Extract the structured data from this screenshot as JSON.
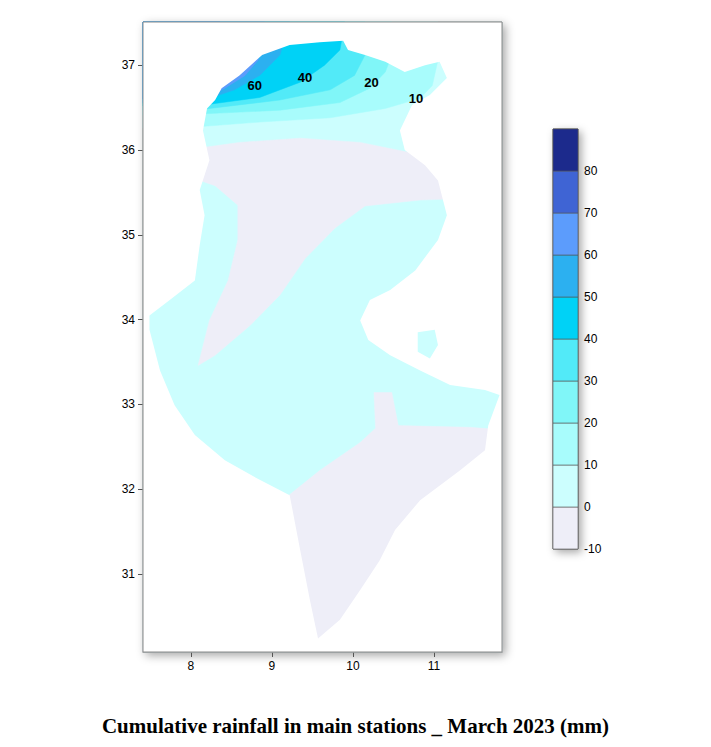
{
  "chart_data": {
    "type": "contour_map",
    "title": "Cumulative rainfall in main stations _ March 2023 (mm)",
    "xlim": [
      7.41,
      11.84
    ],
    "xticks": [
      8,
      9,
      10,
      11
    ],
    "ylim": [
      30.08,
      37.51
    ],
    "yticks": [
      31,
      32,
      33,
      34,
      35,
      36,
      37
    ],
    "grid": false,
    "colorbar": {
      "range": [
        -10,
        90
      ],
      "ticks": [
        -10,
        0,
        10,
        20,
        30,
        40,
        50,
        60,
        70,
        80
      ],
      "colors": [
        "#eeeef8",
        "#ccfefe",
        "#a8fcfc",
        "#80f6f8",
        "#52eaf8",
        "#00d2f6",
        "#2cb0f0",
        "#5c9cfc",
        "#3f64d4",
        "#1c2a8c"
      ]
    },
    "outline": [
      [
        [
          8.2,
          36.49
        ],
        [
          8.3,
          36.59
        ],
        [
          8.38,
          36.73
        ],
        [
          8.6,
          36.88
        ],
        [
          8.88,
          37.12
        ],
        [
          9.22,
          37.24
        ],
        [
          9.59,
          37.27
        ],
        [
          9.88,
          37.29
        ],
        [
          9.94,
          37.18
        ],
        [
          10.15,
          37.12
        ],
        [
          10.4,
          37.04
        ],
        [
          10.64,
          36.92
        ],
        [
          10.89,
          37.0
        ],
        [
          11.07,
          37.04
        ],
        [
          11.16,
          36.85
        ],
        [
          10.95,
          36.65
        ],
        [
          10.73,
          36.53
        ],
        [
          10.58,
          36.23
        ],
        [
          10.64,
          36.0
        ],
        [
          10.89,
          35.82
        ],
        [
          11.05,
          35.64
        ],
        [
          11.16,
          35.23
        ],
        [
          11.05,
          34.94
        ],
        [
          10.77,
          34.58
        ],
        [
          10.46,
          34.35
        ],
        [
          10.21,
          34.23
        ],
        [
          10.09,
          33.99
        ],
        [
          10.19,
          33.76
        ],
        [
          10.46,
          33.58
        ],
        [
          10.83,
          33.4
        ],
        [
          11.2,
          33.23
        ],
        [
          11.63,
          33.17
        ],
        [
          11.81,
          33.11
        ],
        [
          11.67,
          32.75
        ],
        [
          11.63,
          32.46
        ],
        [
          11.32,
          32.22
        ],
        [
          10.83,
          31.87
        ],
        [
          10.52,
          31.52
        ],
        [
          10.33,
          31.16
        ],
        [
          10.09,
          30.81
        ],
        [
          9.84,
          30.46
        ],
        [
          9.57,
          30.24
        ],
        [
          9.47,
          30.69
        ],
        [
          9.35,
          31.28
        ],
        [
          9.22,
          31.93
        ],
        [
          8.85,
          32.11
        ],
        [
          8.42,
          32.34
        ],
        [
          8.05,
          32.64
        ],
        [
          7.8,
          32.99
        ],
        [
          7.62,
          33.4
        ],
        [
          7.49,
          33.88
        ],
        [
          7.49,
          34.05
        ],
        [
          7.74,
          34.23
        ],
        [
          8.05,
          34.46
        ],
        [
          8.11,
          34.88
        ],
        [
          8.17,
          35.23
        ],
        [
          8.11,
          35.53
        ],
        [
          8.23,
          35.88
        ],
        [
          8.15,
          36.23
        ]
      ],
      [
        [
          10.8,
          33.85
        ],
        [
          11.01,
          33.88
        ],
        [
          11.05,
          33.7
        ],
        [
          10.95,
          33.54
        ],
        [
          10.8,
          33.62
        ]
      ]
    ],
    "zones": [
      {
        "level": 0,
        "polygon": [
          [
            7.41,
            30.08
          ],
          [
            11.84,
            30.08
          ],
          [
            11.84,
            37.51
          ],
          [
            7.41,
            37.51
          ]
        ]
      },
      {
        "level": -10,
        "polygon": [
          [
            7.93,
            36.0
          ],
          [
            8.6,
            36.09
          ],
          [
            9.35,
            36.14
          ],
          [
            10.09,
            36.09
          ],
          [
            10.7,
            35.97
          ],
          [
            11.44,
            35.88
          ],
          [
            11.44,
            35.43
          ],
          [
            10.83,
            35.41
          ],
          [
            10.15,
            35.34
          ],
          [
            9.78,
            35.08
          ],
          [
            9.41,
            34.72
          ],
          [
            9.1,
            34.29
          ],
          [
            8.73,
            33.93
          ],
          [
            8.3,
            33.58
          ],
          [
            8.09,
            33.46
          ],
          [
            8.23,
            33.99
          ],
          [
            8.46,
            34.46
          ],
          [
            8.58,
            34.94
          ],
          [
            8.58,
            35.35
          ],
          [
            8.3,
            35.58
          ],
          [
            7.93,
            35.7
          ]
        ]
      },
      {
        "level": -10,
        "polygon": [
          [
            7.41,
            30.08
          ],
          [
            7.41,
            31.75
          ],
          [
            9.16,
            31.89
          ],
          [
            9.59,
            32.22
          ],
          [
            10.09,
            32.55
          ],
          [
            10.28,
            32.72
          ],
          [
            10.26,
            33.14
          ],
          [
            10.48,
            33.14
          ],
          [
            10.56,
            32.75
          ],
          [
            11.44,
            32.73
          ],
          [
            11.84,
            32.7
          ],
          [
            11.84,
            30.08
          ]
        ]
      },
      {
        "level": 10,
        "polygon": [
          [
            7.41,
            36.26
          ],
          [
            8.17,
            36.28
          ],
          [
            8.85,
            36.33
          ],
          [
            9.72,
            36.38
          ],
          [
            10.4,
            36.49
          ],
          [
            10.83,
            36.61
          ],
          [
            10.98,
            36.76
          ],
          [
            11.05,
            37.06
          ],
          [
            11.05,
            37.51
          ],
          [
            7.41,
            37.51
          ]
        ]
      },
      {
        "level": 20,
        "polygon": [
          [
            7.41,
            36.41
          ],
          [
            8.23,
            36.43
          ],
          [
            9.1,
            36.47
          ],
          [
            9.84,
            36.56
          ],
          [
            10.21,
            36.73
          ],
          [
            10.4,
            36.92
          ],
          [
            10.48,
            37.12
          ],
          [
            10.48,
            37.51
          ],
          [
            7.41,
            37.51
          ]
        ]
      },
      {
        "level": 30,
        "polygon": [
          [
            7.41,
            36.47
          ],
          [
            8.23,
            36.49
          ],
          [
            9.1,
            36.59
          ],
          [
            9.72,
            36.71
          ],
          [
            10.02,
            36.88
          ],
          [
            10.15,
            37.12
          ],
          [
            10.15,
            37.51
          ],
          [
            7.41,
            37.51
          ]
        ]
      },
      {
        "level": 40,
        "polygon": [
          [
            7.41,
            36.52
          ],
          [
            8.23,
            36.54
          ],
          [
            8.85,
            36.62
          ],
          [
            9.35,
            36.8
          ],
          [
            9.65,
            37.0
          ],
          [
            9.84,
            37.18
          ],
          [
            9.9,
            37.51
          ],
          [
            7.41,
            37.51
          ]
        ]
      },
      {
        "level": 50,
        "polygon": [
          [
            7.41,
            36.55
          ],
          [
            8.17,
            36.59
          ],
          [
            8.54,
            36.71
          ],
          [
            8.85,
            36.88
          ],
          [
            9.1,
            37.12
          ],
          [
            9.22,
            37.51
          ],
          [
            7.41,
            37.51
          ]
        ]
      },
      {
        "level": 60,
        "polygon": [
          [
            7.41,
            36.56
          ],
          [
            8.17,
            36.61
          ],
          [
            8.42,
            36.73
          ],
          [
            8.67,
            36.88
          ],
          [
            8.83,
            37.06
          ],
          [
            8.91,
            37.51
          ],
          [
            7.41,
            37.51
          ]
        ]
      },
      {
        "level": 70,
        "polygon": [
          [
            7.41,
            36.6
          ],
          [
            8.2,
            36.6
          ],
          [
            8.3,
            36.68
          ],
          [
            8.36,
            36.78
          ],
          [
            8.36,
            37.51
          ],
          [
            7.41,
            37.51
          ]
        ]
      }
    ],
    "contour_labels": [
      {
        "value": 60,
        "x": 8.79,
        "y": 36.76
      },
      {
        "value": 40,
        "x": 9.41,
        "y": 36.85
      },
      {
        "value": 20,
        "x": 10.23,
        "y": 36.8
      },
      {
        "value": 10,
        "x": 10.78,
        "y": 36.61
      }
    ]
  }
}
